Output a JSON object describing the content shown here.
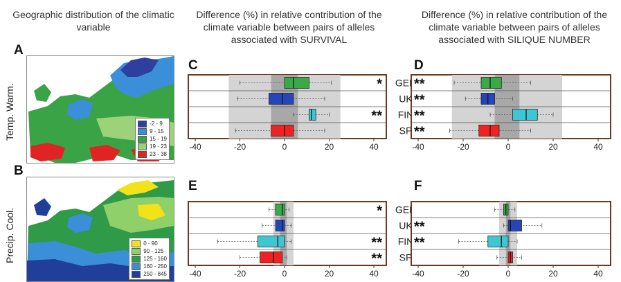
{
  "headers": {
    "col1": "Geographic distribution of the climatic variable",
    "col2": "Difference (%) in relative contribution of the climate variable between pairs of alleles associated with SURVIVAL",
    "col3": "Difference (%) in relative contribution of the climate variable between pairs of alleles associated with SILIQUE NUMBER"
  },
  "row_labels": {
    "top": "Temp. Warm.",
    "bottom": "Precip. Cool."
  },
  "panel_letters": {
    "A": "A",
    "B": "B",
    "C": "C",
    "D": "D",
    "E": "E",
    "F": "F"
  },
  "legend_temp": [
    {
      "label": "-2 - 9",
      "color": "#2f3fa0"
    },
    {
      "label": "9 - 15",
      "color": "#3a8fd8"
    },
    {
      "label": "15 - 19",
      "color": "#3aa346"
    },
    {
      "label": "19 - 23",
      "color": "#9ed27a"
    },
    {
      "label": "23 - 38",
      "color": "#e02424"
    }
  ],
  "legend_precip": [
    {
      "label": "0 - 90",
      "color": "#f2e21a"
    },
    {
      "label": "90 - 125",
      "color": "#8fd06a"
    },
    {
      "label": "125 - 160",
      "color": "#2f9a48"
    },
    {
      "label": "160 - 250",
      "color": "#3a8fd8"
    },
    {
      "label": "250 - 845",
      "color": "#1f3f9a"
    }
  ],
  "chart_data": [
    {
      "panel": "C",
      "type": "box",
      "xlim": [
        -40,
        40
      ],
      "xticks": [
        -40,
        -20,
        0,
        20,
        40
      ],
      "categories": [
        "GER",
        "UK",
        "FIN",
        "SP"
      ],
      "significance": [
        "*",
        "",
        "**",
        ""
      ],
      "boxes": [
        {
          "q1": 0,
          "median": 4,
          "q3": 11,
          "wlo": -20,
          "whi": 21,
          "color": "#3aaa48"
        },
        {
          "q1": -7,
          "median": -1,
          "q3": 4,
          "wlo": -21,
          "whi": 18,
          "color": "#2646b8"
        },
        {
          "q1": 11,
          "median": 12,
          "q3": 14,
          "wlo": 4,
          "whi": 20,
          "color": "#3ec7d3"
        },
        {
          "q1": -6,
          "median": 0,
          "q3": 4,
          "wlo": -22,
          "whi": 18,
          "color": "#ee2222"
        }
      ],
      "band_outer": [
        -25,
        25
      ],
      "band_inner": [
        -6,
        6
      ]
    },
    {
      "panel": "D",
      "type": "box",
      "xlim": [
        -40,
        40
      ],
      "xticks": [
        -40,
        -20,
        0,
        20,
        40
      ],
      "categories": [
        "GER",
        "UK",
        "FIN",
        "SP"
      ],
      "significance": [
        "**",
        "**",
        "**",
        "**"
      ],
      "boxes": [
        {
          "q1": -12,
          "median": -8,
          "q3": -3,
          "wlo": -24,
          "whi": 10,
          "color": "#3aaa48"
        },
        {
          "q1": -12,
          "median": -9,
          "q3": -6,
          "wlo": -19,
          "whi": 2,
          "color": "#2646b8"
        },
        {
          "q1": 2,
          "median": 8,
          "q3": 13,
          "wlo": -8,
          "whi": 20,
          "color": "#3ec7d3"
        },
        {
          "q1": -13,
          "median": -8,
          "q3": -4,
          "wlo": -26,
          "whi": 10,
          "color": "#ee2222"
        }
      ],
      "band_outer": [
        -25,
        24
      ],
      "band_inner": [
        -6,
        5
      ]
    },
    {
      "panel": "E",
      "type": "box",
      "xlim": [
        -40,
        40
      ],
      "xticks": [
        -40,
        -20,
        0,
        20,
        40
      ],
      "categories": [
        "GER",
        "UK",
        "FIN",
        "SP"
      ],
      "significance": [
        "*",
        "",
        "**",
        "**"
      ],
      "boxes": [
        {
          "q1": -4,
          "median": -1,
          "q3": 0,
          "wlo": -7,
          "whi": 2,
          "color": "#3aaa48"
        },
        {
          "q1": -4,
          "median": -1,
          "q3": 0,
          "wlo": -10,
          "whi": 3,
          "color": "#2646b8"
        },
        {
          "q1": -12,
          "median": -3,
          "q3": 0,
          "wlo": -30,
          "whi": 3,
          "color": "#3ec7d3"
        },
        {
          "q1": -11,
          "median": -5,
          "q3": -1,
          "wlo": -20,
          "whi": 1,
          "color": "#ee2222"
        }
      ],
      "band_outer": [
        -5,
        4
      ],
      "band_inner": [
        -2,
        1
      ]
    },
    {
      "panel": "F",
      "type": "box",
      "xlim": [
        -40,
        40
      ],
      "xticks": [
        -40,
        -20,
        0,
        20,
        40
      ],
      "categories": [
        "GER",
        "UK",
        "FIN",
        "SP"
      ],
      "significance": [
        "",
        "**",
        "**",
        ""
      ],
      "boxes": [
        {
          "q1": -2,
          "median": -1,
          "q3": 0,
          "wlo": -6,
          "whi": 3,
          "color": "#3aaa48"
        },
        {
          "q1": 0,
          "median": 1,
          "q3": 6,
          "wlo": -2,
          "whi": 15,
          "color": "#2646b8"
        },
        {
          "q1": -9,
          "median": -3,
          "q3": 0,
          "wlo": -22,
          "whi": 4,
          "color": "#3ec7d3"
        },
        {
          "q1": 0,
          "median": 1,
          "q3": 2,
          "wlo": -5,
          "whi": 6,
          "color": "#ee2222"
        }
      ],
      "band_outer": [
        -4,
        4
      ],
      "band_inner": [
        -1,
        1
      ]
    }
  ]
}
